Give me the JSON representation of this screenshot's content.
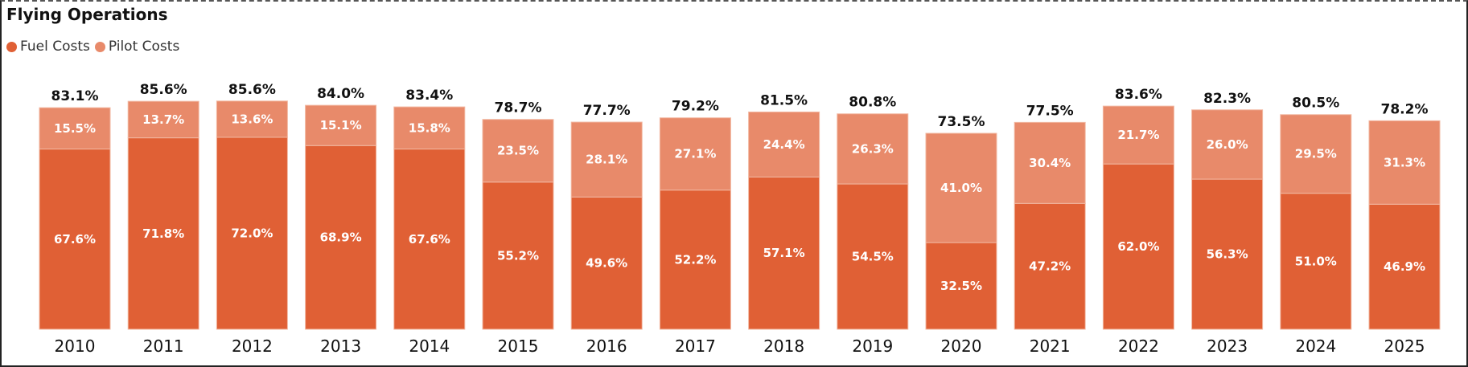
{
  "title": "Flying Operations",
  "legend": [
    {
      "label": "Fuel Costs",
      "color": "#E06035"
    },
    {
      "label": "Pilot Costs",
      "color": "#E88A6A"
    }
  ],
  "chart_data": {
    "type": "bar",
    "stacked": true,
    "title": "Flying Operations",
    "categories": [
      "2010",
      "2011",
      "2012",
      "2013",
      "2014",
      "2015",
      "2016",
      "2017",
      "2018",
      "2019",
      "2020",
      "2021",
      "2022",
      "2023",
      "2024",
      "2025"
    ],
    "series": [
      {
        "name": "Fuel Costs",
        "color": "#E06035",
        "values": [
          67.6,
          71.8,
          72.0,
          68.9,
          67.6,
          55.2,
          49.6,
          52.2,
          57.1,
          54.5,
          32.5,
          47.2,
          62.0,
          56.3,
          51.0,
          46.9
        ]
      },
      {
        "name": "Pilot Costs",
        "color": "#E88A6A",
        "values": [
          15.5,
          13.7,
          13.6,
          15.1,
          15.8,
          23.5,
          28.1,
          27.1,
          24.4,
          26.3,
          41.0,
          30.4,
          21.7,
          26.0,
          29.5,
          31.3
        ]
      }
    ],
    "totals": [
      83.1,
      85.6,
      85.6,
      84.0,
      83.4,
      78.7,
      77.7,
      79.2,
      81.5,
      80.8,
      73.5,
      77.5,
      83.6,
      82.3,
      80.5,
      78.2
    ],
    "value_suffix": "%",
    "ylim": [
      0,
      100
    ],
    "legend_position": "top-left",
    "grid": false
  }
}
